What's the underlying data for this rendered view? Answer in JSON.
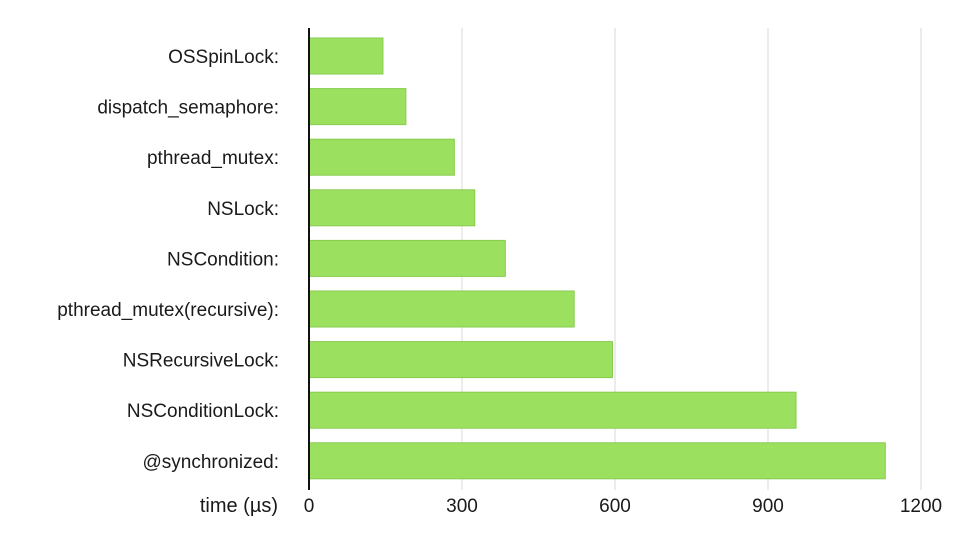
{
  "chart_data": {
    "type": "bar",
    "orientation": "horizontal",
    "categories": [
      "OSSpinLock:",
      "dispatch_semaphore:",
      "pthread_mutex:",
      "NSLock:",
      "NSCondition:",
      "pthread_mutex(recursive):",
      "NSRecursiveLock:",
      "NSConditionLock:",
      "@synchronized:"
    ],
    "values": [
      145,
      190,
      285,
      325,
      385,
      520,
      595,
      955,
      1130
    ],
    "xlabel": "time (µs)",
    "ylabel": "",
    "xlim": [
      0,
      1200
    ],
    "xticks": [
      0,
      300,
      600,
      900,
      1200
    ],
    "grid": "vertical",
    "bar_color": "#9be05f",
    "bar_stroke": "#87cc4d"
  }
}
